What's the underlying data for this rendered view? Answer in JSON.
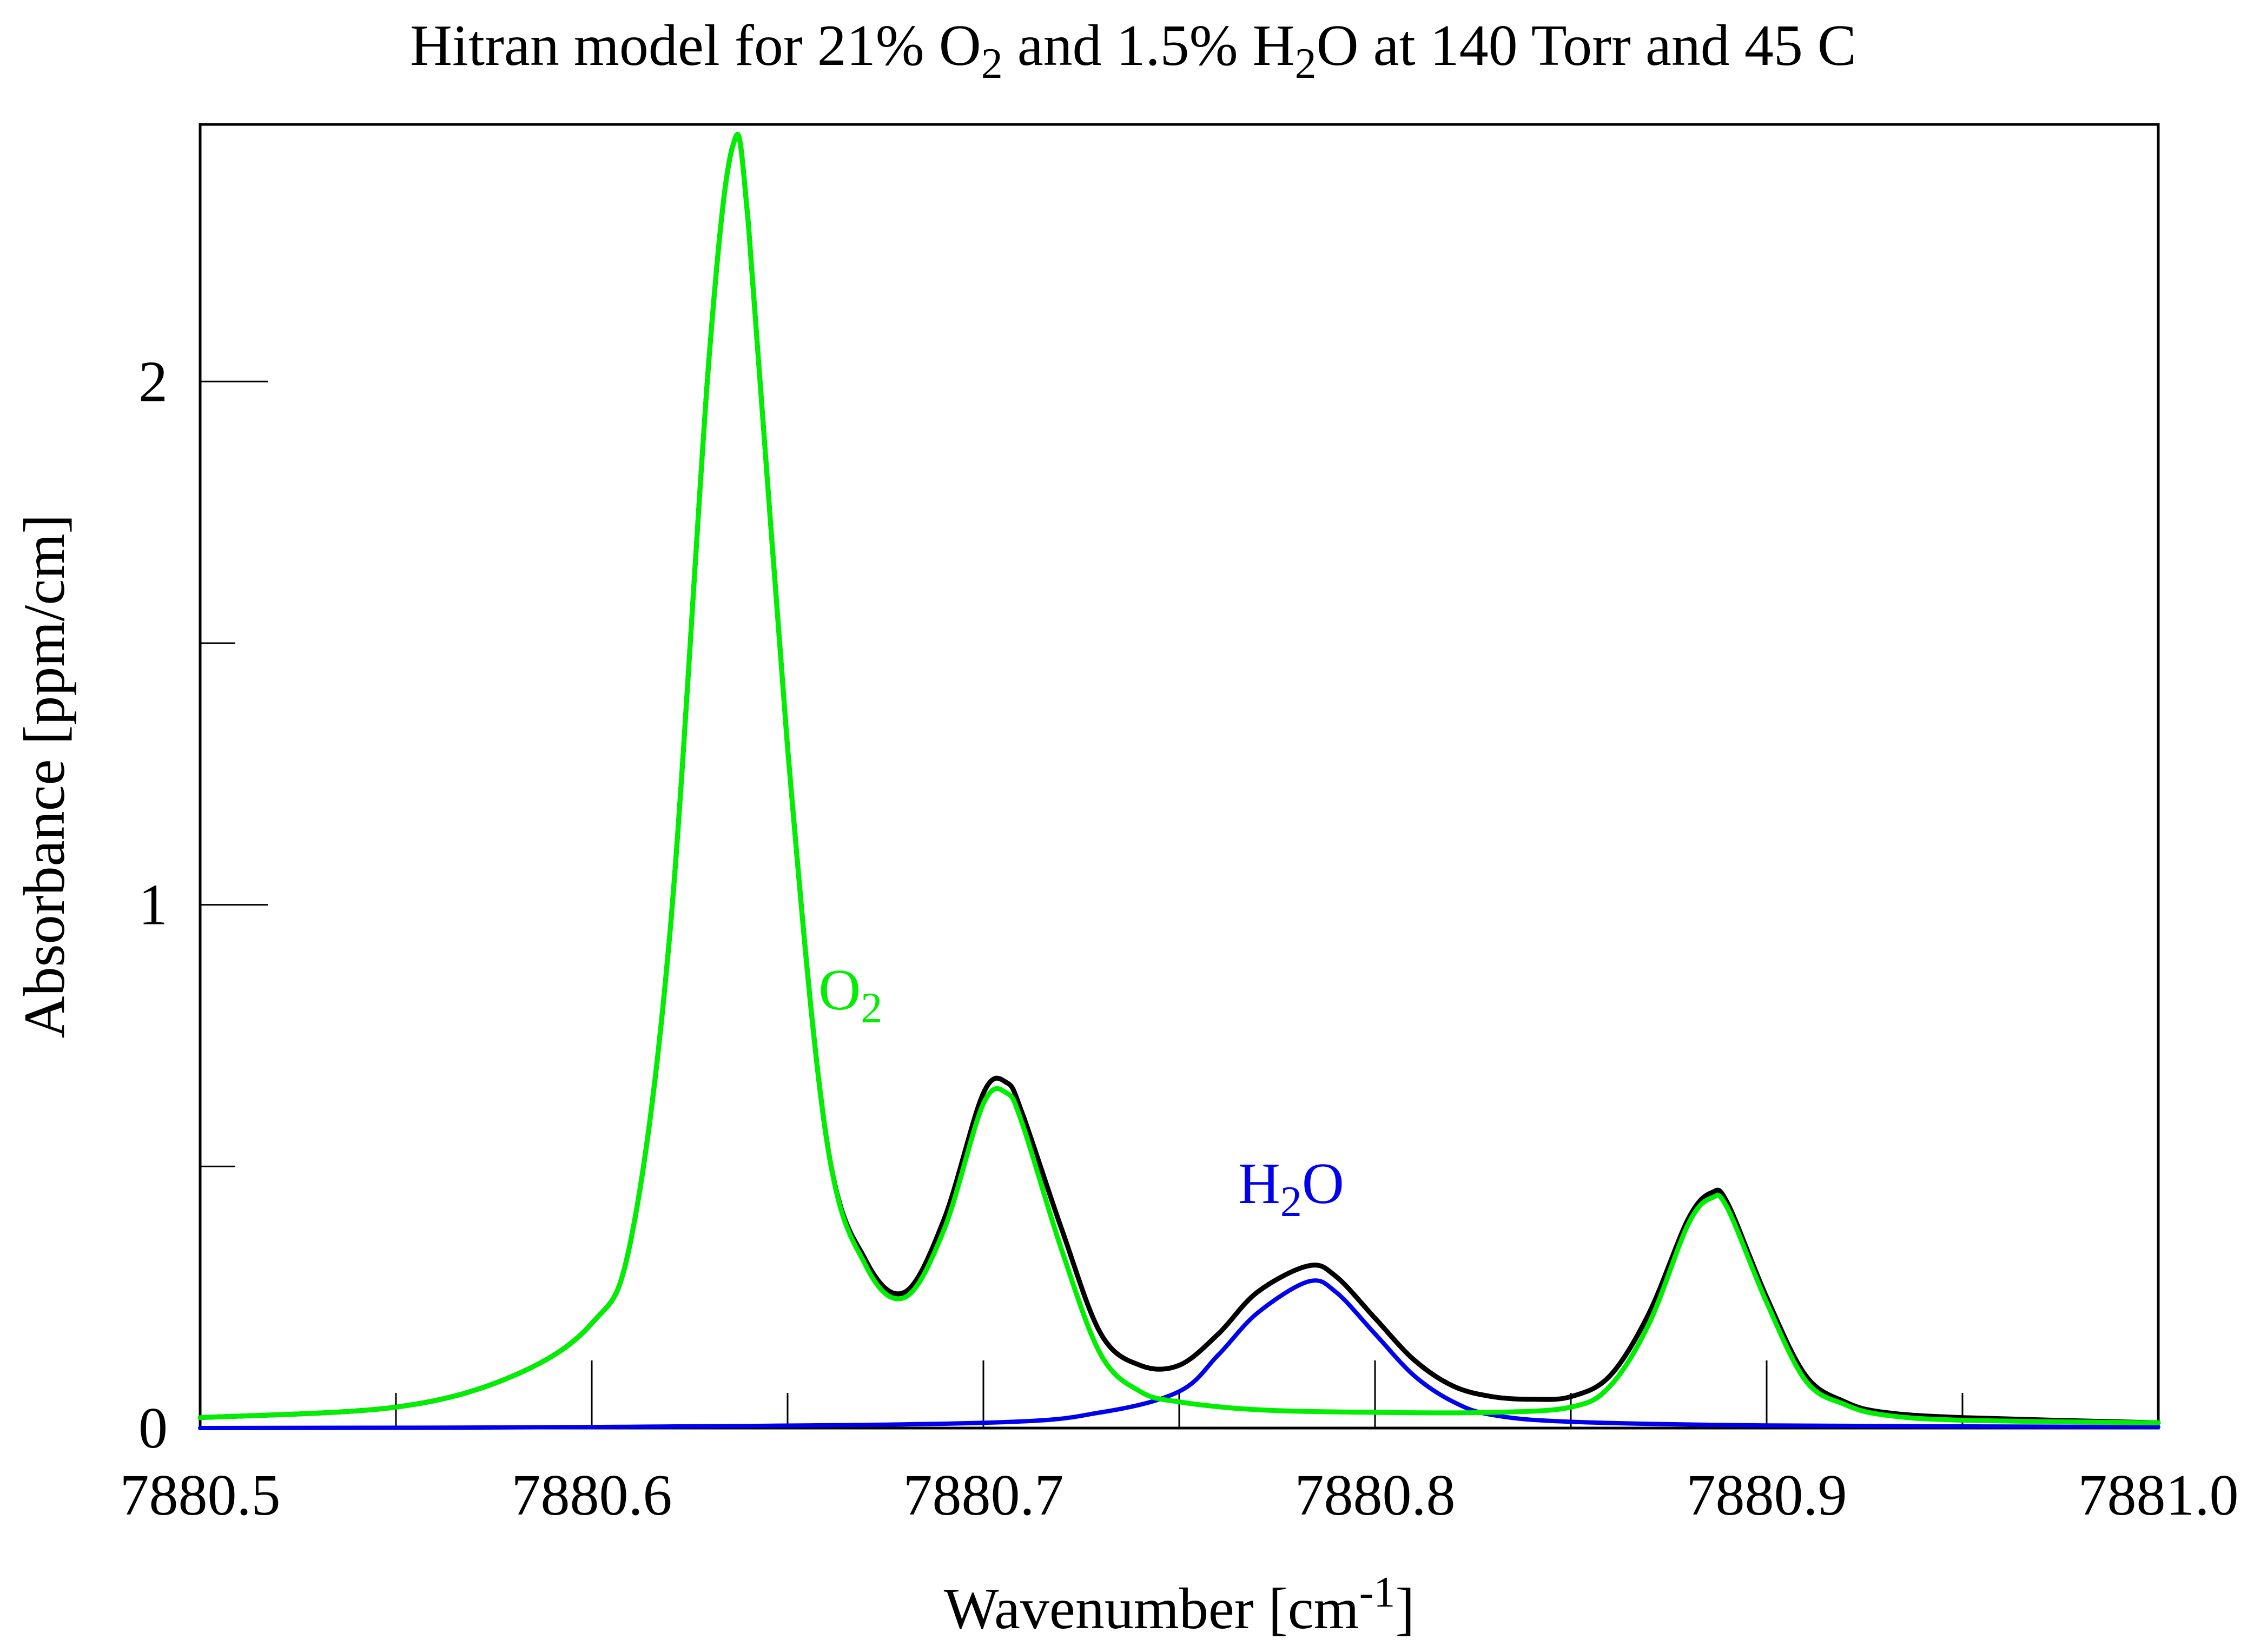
{
  "chart_data": {
    "type": "line",
    "title": {
      "p1": "Hitran model for 21% O",
      "sub1": "2",
      "p2": " and 1.5% H",
      "sub2": "2",
      "p3": "O at 140 Torr and 45 C"
    },
    "xlabel": {
      "main": "Wavenumber [cm",
      "sup": "-1",
      "close": "]"
    },
    "ylabel": "Absorbance [ppm/cm]",
    "xlim": [
      7880.5,
      7881.0
    ],
    "ylim": [
      0,
      2.45
    ],
    "x_ticks": [
      7880.5,
      7880.6,
      7880.7,
      7880.8,
      7880.9,
      7881.0
    ],
    "x_tick_labels": [
      "7880.5",
      "7880.6",
      "7880.7",
      "7880.8",
      "7880.9",
      "7881.0"
    ],
    "x_minor_ticks": [
      7880.55,
      7880.65,
      7880.75,
      7880.85,
      7880.95
    ],
    "y_ticks": [
      0,
      1,
      2
    ],
    "y_tick_labels": [
      "0",
      "1",
      "2"
    ],
    "y_minor_ticks": [
      0.5,
      1.5
    ],
    "grid": false,
    "colors": {
      "total": "#000000",
      "o2": "#00ee00",
      "h2o": "#0000ee",
      "axis": "#000000"
    },
    "annotations": {
      "o2": {
        "main": "O",
        "sub": "2",
        "x": 7880.68,
        "y": 0.8
      },
      "h2o": {
        "main": "H",
        "sub": "2",
        "tail": "O",
        "x": 7880.783,
        "y": 0.43
      }
    },
    "series": [
      {
        "id": "total",
        "x": [
          7880.5,
          7880.55,
          7880.58,
          7880.6,
          7880.61,
          7880.62,
          7880.63,
          7880.636,
          7880.64,
          7880.65,
          7880.66,
          7880.67,
          7880.68,
          7880.69,
          7880.7,
          7880.706,
          7880.71,
          7880.72,
          7880.73,
          7880.74,
          7880.75,
          7880.76,
          7880.77,
          7880.783,
          7880.79,
          7880.8,
          7880.81,
          7880.82,
          7880.83,
          7880.84,
          7880.85,
          7880.86,
          7880.87,
          7880.88,
          7880.886,
          7880.89,
          7880.9,
          7880.91,
          7880.92,
          7880.93,
          7880.95,
          7881.0
        ],
        "y": [
          0.02,
          0.04,
          0.1,
          0.2,
          0.36,
          0.95,
          2.05,
          2.45,
          2.3,
          1.3,
          0.55,
          0.32,
          0.26,
          0.4,
          0.64,
          0.66,
          0.6,
          0.38,
          0.18,
          0.12,
          0.12,
          0.18,
          0.26,
          0.31,
          0.29,
          0.21,
          0.13,
          0.08,
          0.06,
          0.055,
          0.06,
          0.1,
          0.22,
          0.4,
          0.45,
          0.43,
          0.25,
          0.1,
          0.05,
          0.03,
          0.02,
          0.01
        ]
      },
      {
        "id": "o2",
        "x": [
          7880.5,
          7880.55,
          7880.58,
          7880.6,
          7880.61,
          7880.62,
          7880.63,
          7880.636,
          7880.64,
          7880.65,
          7880.66,
          7880.67,
          7880.68,
          7880.69,
          7880.7,
          7880.706,
          7880.71,
          7880.72,
          7880.73,
          7880.74,
          7880.75,
          7880.77,
          7880.8,
          7880.83,
          7880.85,
          7880.86,
          7880.87,
          7880.88,
          7880.886,
          7880.89,
          7880.9,
          7880.91,
          7880.92,
          7880.93,
          7880.95,
          7881.0
        ],
        "y": [
          0.02,
          0.04,
          0.1,
          0.2,
          0.36,
          0.95,
          2.05,
          2.45,
          2.3,
          1.3,
          0.55,
          0.31,
          0.25,
          0.38,
          0.62,
          0.64,
          0.58,
          0.34,
          0.14,
          0.07,
          0.05,
          0.035,
          0.03,
          0.03,
          0.04,
          0.08,
          0.2,
          0.39,
          0.44,
          0.42,
          0.24,
          0.09,
          0.045,
          0.025,
          0.015,
          0.01
        ]
      },
      {
        "id": "h2o",
        "x": [
          7880.5,
          7880.6,
          7880.7,
          7880.73,
          7880.75,
          7880.76,
          7880.77,
          7880.783,
          7880.79,
          7880.8,
          7880.81,
          7880.82,
          7880.83,
          7880.85,
          7880.9,
          7881.0
        ],
        "y": [
          0.0,
          0.002,
          0.01,
          0.03,
          0.07,
          0.14,
          0.22,
          0.28,
          0.26,
          0.18,
          0.1,
          0.05,
          0.025,
          0.012,
          0.005,
          0.002
        ]
      }
    ]
  }
}
